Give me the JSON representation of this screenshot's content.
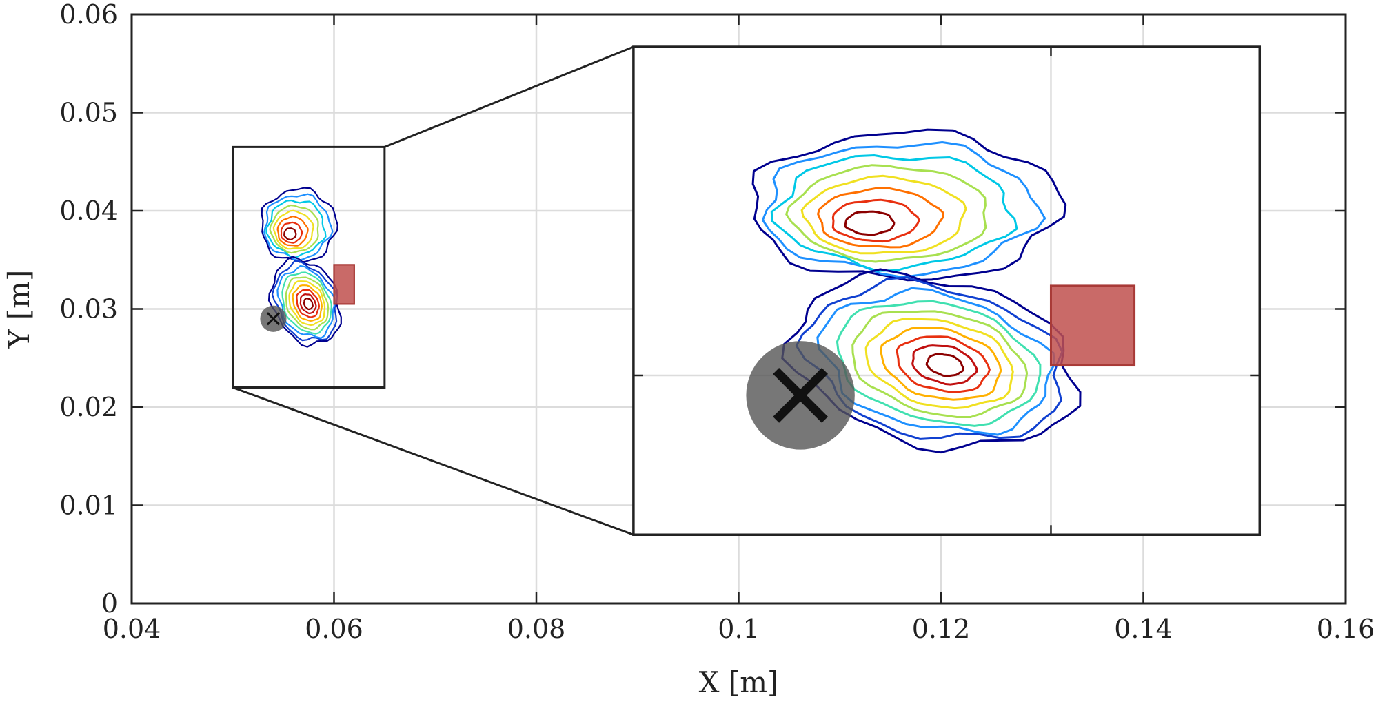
{
  "chart_data": {
    "type": "contour",
    "title": "",
    "xlabel": "X [m]",
    "ylabel": "Y [m]",
    "xlim": [
      0.04,
      0.16
    ],
    "ylim": [
      0,
      0.06
    ],
    "xticks": [
      {
        "value": 0.04,
        "label": "0.04"
      },
      {
        "value": 0.06,
        "label": "0.06"
      },
      {
        "value": 0.08,
        "label": "0.08"
      },
      {
        "value": 0.1,
        "label": "0.1"
      },
      {
        "value": 0.12,
        "label": "0.12"
      },
      {
        "value": 0.14,
        "label": "0.14"
      },
      {
        "value": 0.16,
        "label": "0.16"
      }
    ],
    "yticks": [
      {
        "value": 0,
        "label": "0"
      },
      {
        "value": 0.01,
        "label": "0.01"
      },
      {
        "value": 0.02,
        "label": "0.02"
      },
      {
        "value": 0.03,
        "label": "0.03"
      },
      {
        "value": 0.04,
        "label": "0.04"
      },
      {
        "value": 0.05,
        "label": "0.05"
      },
      {
        "value": 0.06,
        "label": "0.06"
      }
    ],
    "grid": true,
    "contour_colormap": [
      "#00008f",
      "#1040d0",
      "#1e90ff",
      "#00c8e6",
      "#40e0b0",
      "#a8e050",
      "#f0e020",
      "#ffb000",
      "#ff7000",
      "#e83010",
      "#c01010",
      "#8b0000"
    ],
    "blobs": [
      {
        "name": "upper",
        "cx": 0.0565,
        "cy": 0.0385,
        "rx": 0.0037,
        "ry": 0.0037,
        "tilt_deg": -8,
        "levels": 8,
        "peak": [
          0.0555,
          0.0375
        ]
      },
      {
        "name": "lower",
        "cx": 0.0572,
        "cy": 0.0307,
        "rx": 0.0032,
        "ry": 0.0045,
        "tilt_deg": 22,
        "levels": 10,
        "peak": [
          0.0575,
          0.0305
        ]
      }
    ],
    "rectangle": {
      "x0": 0.06,
      "x1": 0.062,
      "y0": 0.0305,
      "y1": 0.0345,
      "color": "#c0504d"
    },
    "marker": {
      "x": 0.054,
      "y": 0.029,
      "r": 0.0013,
      "color": "#555555",
      "symbol": "x"
    },
    "zoom_source_box": {
      "x0": 0.05,
      "x1": 0.065,
      "y0": 0.022,
      "y1": 0.0465
    },
    "inset_box": {
      "x0": 0.0896,
      "x1": 0.1515,
      "y0": 0.007,
      "y1": 0.0567
    }
  }
}
